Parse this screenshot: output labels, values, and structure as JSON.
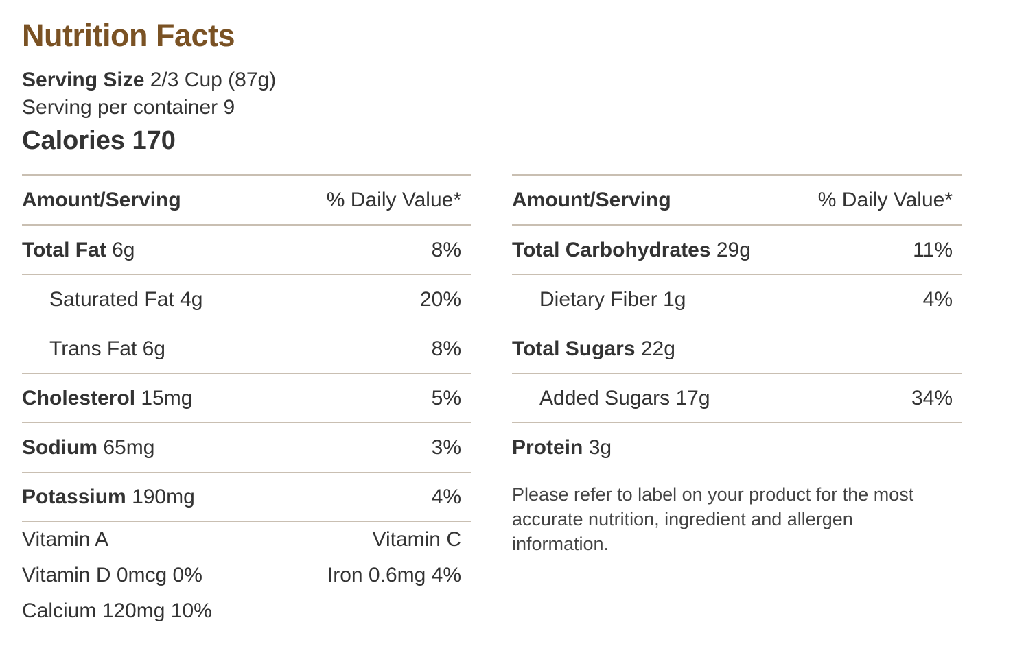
{
  "title": "Nutrition Facts",
  "serving": {
    "size_label": "Serving Size",
    "size_value": "2/3 Cup (87g)",
    "per_container": "Serving per container 9"
  },
  "calories": "Calories 170",
  "left": {
    "header": {
      "amount": "Amount/Serving",
      "daily": "% Daily Value*"
    },
    "rows": [
      {
        "name": "Total Fat",
        "amount": "6g",
        "dv": "8%"
      },
      {
        "name": "Saturated Fat",
        "amount": "4g",
        "dv": "20%"
      },
      {
        "name": "Trans Fat",
        "amount": "6g",
        "dv": "8%"
      },
      {
        "name": "Cholesterol",
        "amount": "15mg",
        "dv": "5%"
      },
      {
        "name": "Sodium",
        "amount": "65mg",
        "dv": "3%"
      },
      {
        "name": "Potassium",
        "amount": "190mg",
        "dv": "4%"
      }
    ],
    "vitamins": {
      "vitamin_a": "Vitamin A",
      "vitamin_c": "Vitamin C",
      "vitamin_d": "Vitamin D 0mcg 0%",
      "iron": "Iron 0.6mg 4%",
      "calcium": "Calcium 120mg 10%"
    }
  },
  "right": {
    "header": {
      "amount": "Amount/Serving",
      "daily": "% Daily Value*"
    },
    "rows": [
      {
        "name": "Total Carbohydrates",
        "amount": "29g",
        "dv": "11%"
      },
      {
        "name": "Dietary Fiber",
        "amount": "1g",
        "dv": "4%"
      },
      {
        "name": "Total Sugars",
        "amount": "22g",
        "dv": ""
      },
      {
        "name": "Added Sugars",
        "amount": "17g",
        "dv": "34%"
      },
      {
        "name": "Protein",
        "amount": "3g",
        "dv": ""
      }
    ],
    "disclaimer": "Please refer to label on your product for the most accurate nutrition, ingredient and allergen information."
  }
}
